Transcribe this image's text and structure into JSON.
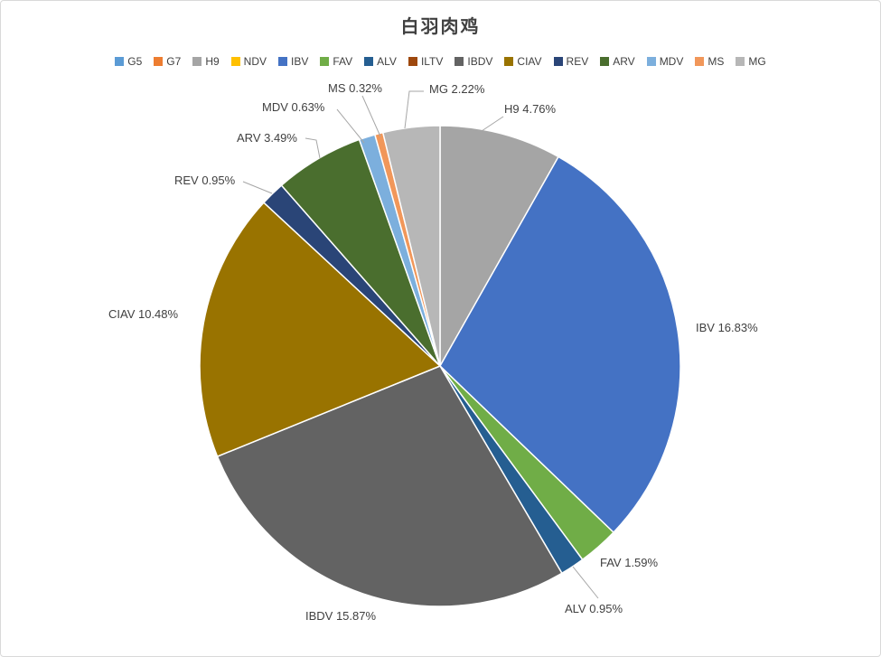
{
  "window": {
    "background": "#FFFFFF",
    "border_color": "#D9D9D9"
  },
  "chart_data": {
    "type": "pie",
    "title": "白羽肉鸡",
    "legend_position": "top",
    "direction": "clockwise",
    "start_angle_deg": 0,
    "value_unit": "%",
    "label_text_color": "#404040",
    "leader_line_color": "#A6A6A6",
    "slice_border_color": "#FFFFFF",
    "series": [
      {
        "name": "G5",
        "value": 0,
        "color": "#5B9BD5",
        "label": null
      },
      {
        "name": "G7",
        "value": 0,
        "color": "#ED7D31",
        "label": null
      },
      {
        "name": "H9",
        "value": 4.76,
        "color": "#A5A5A5",
        "label": "H9 4.76%"
      },
      {
        "name": "NDV",
        "value": 0,
        "color": "#FFC000",
        "label": null
      },
      {
        "name": "IBV",
        "value": 16.83,
        "color": "#4472C4",
        "label": "IBV 16.83%"
      },
      {
        "name": "FAV",
        "value": 1.59,
        "color": "#70AD47",
        "label": "FAV 1.59%"
      },
      {
        "name": "ALV",
        "value": 0.95,
        "color": "#255E91",
        "label": "ALV 0.95%"
      },
      {
        "name": "ILTV",
        "value": 0,
        "color": "#9E480E",
        "label": null
      },
      {
        "name": "IBDV",
        "value": 15.87,
        "color": "#636363",
        "label": "IBDV 15.87%"
      },
      {
        "name": "CIAV",
        "value": 10.48,
        "color": "#997300",
        "label": "CIAV 10.48%"
      },
      {
        "name": "REV",
        "value": 0.95,
        "color": "#2A4577",
        "label": "REV 0.95%"
      },
      {
        "name": "ARV",
        "value": 3.49,
        "color": "#4A6E2E",
        "label": "ARV 3.49%"
      },
      {
        "name": "MDV",
        "value": 0.63,
        "color": "#7CAFDD",
        "label": "MDV 0.63%"
      },
      {
        "name": "MS",
        "value": 0.32,
        "color": "#F1975A",
        "label": "MS 0.32%"
      },
      {
        "name": "MG",
        "value": 2.22,
        "color": "#B7B7B7",
        "label": "MG 2.22%"
      }
    ]
  }
}
